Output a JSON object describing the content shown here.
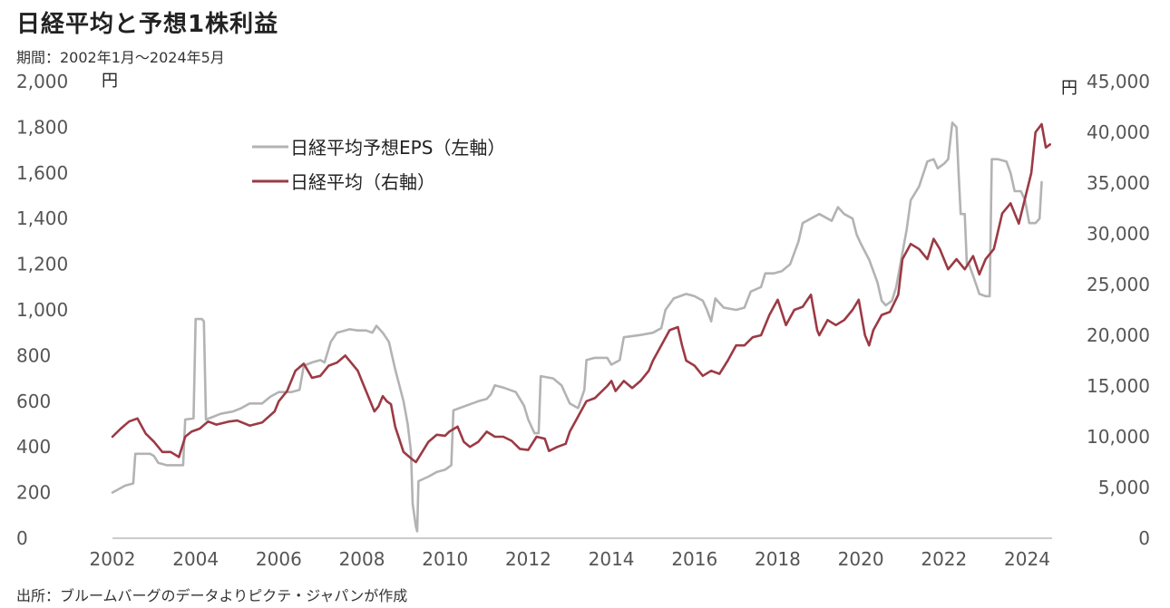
{
  "title": "日経平均と予想1株利益",
  "subtitle": "期間：2002年1月～2024年5月",
  "source": "出所：ブルームバーグのデータよりピクテ・ジャパンが作成",
  "chart_data": {
    "type": "line",
    "left_axis": {
      "unit": "円",
      "range": [
        0,
        2000
      ],
      "ticks": [
        "0",
        "200",
        "400",
        "600",
        "800",
        "1,000",
        "1,200",
        "1,400",
        "1,600",
        "1,800",
        "2,000"
      ]
    },
    "right_axis": {
      "unit": "円",
      "range": [
        0,
        45000
      ],
      "ticks": [
        "0",
        "5,000",
        "10,000",
        "15,000",
        "20,000",
        "25,000",
        "30,000",
        "35,000",
        "40,000",
        "45,000"
      ]
    },
    "x_axis": {
      "range": [
        2002,
        2024.6
      ],
      "ticks": [
        "2002",
        "2004",
        "2006",
        "2008",
        "2010",
        "2012",
        "2014",
        "2016",
        "2018",
        "2020",
        "2022",
        "2024"
      ]
    },
    "grid": false,
    "legend_position": "top-left",
    "series": [
      {
        "name": "日経平均予想EPS（左軸）",
        "axis": "left",
        "color": "#b3b3b3",
        "points": [
          [
            2002.0,
            200
          ],
          [
            2002.3,
            230
          ],
          [
            2002.5,
            240
          ],
          [
            2002.55,
            370
          ],
          [
            2002.9,
            370
          ],
          [
            2003.0,
            360
          ],
          [
            2003.1,
            330
          ],
          [
            2003.3,
            320
          ],
          [
            2003.5,
            320
          ],
          [
            2003.7,
            320
          ],
          [
            2003.75,
            520
          ],
          [
            2003.95,
            525
          ],
          [
            2004.0,
            960
          ],
          [
            2004.15,
            960
          ],
          [
            2004.2,
            950
          ],
          [
            2004.25,
            520
          ],
          [
            2004.4,
            530
          ],
          [
            2004.6,
            545
          ],
          [
            2004.9,
            555
          ],
          [
            2005.1,
            570
          ],
          [
            2005.3,
            590
          ],
          [
            2005.6,
            590
          ],
          [
            2005.8,
            620
          ],
          [
            2006.0,
            640
          ],
          [
            2006.3,
            640
          ],
          [
            2006.5,
            650
          ],
          [
            2006.6,
            755
          ],
          [
            2006.8,
            770
          ],
          [
            2007.0,
            780
          ],
          [
            2007.1,
            770
          ],
          [
            2007.25,
            860
          ],
          [
            2007.4,
            900
          ],
          [
            2007.7,
            915
          ],
          [
            2007.9,
            910
          ],
          [
            2008.1,
            910
          ],
          [
            2008.25,
            900
          ],
          [
            2008.35,
            930
          ],
          [
            2008.5,
            900
          ],
          [
            2008.65,
            860
          ],
          [
            2008.8,
            740
          ],
          [
            2009.0,
            600
          ],
          [
            2009.1,
            500
          ],
          [
            2009.18,
            380
          ],
          [
            2009.22,
            150
          ],
          [
            2009.3,
            50
          ],
          [
            2009.33,
            30
          ],
          [
            2009.36,
            250
          ],
          [
            2009.6,
            270
          ],
          [
            2009.8,
            290
          ],
          [
            2010.0,
            300
          ],
          [
            2010.15,
            320
          ],
          [
            2010.2,
            560
          ],
          [
            2010.5,
            580
          ],
          [
            2010.8,
            600
          ],
          [
            2011.0,
            610
          ],
          [
            2011.1,
            630
          ],
          [
            2011.2,
            670
          ],
          [
            2011.4,
            660
          ],
          [
            2011.7,
            640
          ],
          [
            2011.9,
            580
          ],
          [
            2012.0,
            520
          ],
          [
            2012.15,
            460
          ],
          [
            2012.25,
            460
          ],
          [
            2012.3,
            710
          ],
          [
            2012.6,
            700
          ],
          [
            2012.8,
            670
          ],
          [
            2013.0,
            590
          ],
          [
            2013.2,
            570
          ],
          [
            2013.35,
            650
          ],
          [
            2013.4,
            780
          ],
          [
            2013.6,
            790
          ],
          [
            2013.9,
            790
          ],
          [
            2014.0,
            760
          ],
          [
            2014.2,
            780
          ],
          [
            2014.3,
            880
          ],
          [
            2014.7,
            890
          ],
          [
            2015.0,
            900
          ],
          [
            2015.2,
            920
          ],
          [
            2015.3,
            1000
          ],
          [
            2015.5,
            1050
          ],
          [
            2015.8,
            1070
          ],
          [
            2016.0,
            1060
          ],
          [
            2016.2,
            1040
          ],
          [
            2016.3,
            1000
          ],
          [
            2016.4,
            950
          ],
          [
            2016.5,
            1050
          ],
          [
            2016.7,
            1010
          ],
          [
            2017.0,
            1000
          ],
          [
            2017.2,
            1010
          ],
          [
            2017.35,
            1080
          ],
          [
            2017.6,
            1100
          ],
          [
            2017.7,
            1160
          ],
          [
            2017.9,
            1160
          ],
          [
            2018.1,
            1170
          ],
          [
            2018.3,
            1200
          ],
          [
            2018.5,
            1300
          ],
          [
            2018.6,
            1380
          ],
          [
            2018.8,
            1400
          ],
          [
            2019.0,
            1420
          ],
          [
            2019.3,
            1390
          ],
          [
            2019.45,
            1450
          ],
          [
            2019.6,
            1420
          ],
          [
            2019.8,
            1400
          ],
          [
            2019.9,
            1330
          ],
          [
            2020.0,
            1290
          ],
          [
            2020.2,
            1220
          ],
          [
            2020.4,
            1120
          ],
          [
            2020.5,
            1040
          ],
          [
            2020.6,
            1020
          ],
          [
            2020.75,
            1040
          ],
          [
            2020.85,
            1100
          ],
          [
            2021.0,
            1250
          ],
          [
            2021.1,
            1350
          ],
          [
            2021.2,
            1480
          ],
          [
            2021.4,
            1540
          ],
          [
            2021.6,
            1650
          ],
          [
            2021.75,
            1660
          ],
          [
            2021.85,
            1620
          ],
          [
            2022.0,
            1640
          ],
          [
            2022.1,
            1660
          ],
          [
            2022.2,
            1820
          ],
          [
            2022.3,
            1800
          ],
          [
            2022.35,
            1600
          ],
          [
            2022.4,
            1420
          ],
          [
            2022.5,
            1420
          ],
          [
            2022.55,
            1200
          ],
          [
            2022.6,
            1200
          ],
          [
            2022.7,
            1150
          ],
          [
            2022.85,
            1070
          ],
          [
            2023.0,
            1060
          ],
          [
            2023.1,
            1060
          ],
          [
            2023.15,
            1660
          ],
          [
            2023.3,
            1660
          ],
          [
            2023.5,
            1650
          ],
          [
            2023.6,
            1600
          ],
          [
            2023.7,
            1520
          ],
          [
            2023.85,
            1520
          ],
          [
            2023.95,
            1480
          ],
          [
            2024.05,
            1380
          ],
          [
            2024.2,
            1380
          ],
          [
            2024.3,
            1400
          ],
          [
            2024.35,
            1560
          ]
        ]
      },
      {
        "name": "日経平均（右軸）",
        "axis": "right",
        "color": "#9b3a44",
        "points": [
          [
            2002.0,
            10000
          ],
          [
            2002.2,
            10800
          ],
          [
            2002.4,
            11500
          ],
          [
            2002.6,
            11800
          ],
          [
            2002.8,
            10300
          ],
          [
            2003.0,
            9500
          ],
          [
            2003.2,
            8500
          ],
          [
            2003.4,
            8500
          ],
          [
            2003.6,
            8000
          ],
          [
            2003.75,
            10000
          ],
          [
            2003.9,
            10500
          ],
          [
            2004.1,
            10800
          ],
          [
            2004.3,
            11500
          ],
          [
            2004.5,
            11200
          ],
          [
            2004.8,
            11500
          ],
          [
            2005.0,
            11600
          ],
          [
            2005.3,
            11100
          ],
          [
            2005.6,
            11400
          ],
          [
            2005.9,
            12500
          ],
          [
            2006.0,
            13500
          ],
          [
            2006.2,
            14500
          ],
          [
            2006.4,
            16500
          ],
          [
            2006.6,
            17200
          ],
          [
            2006.7,
            16500
          ],
          [
            2006.8,
            15800
          ],
          [
            2007.0,
            16000
          ],
          [
            2007.2,
            17000
          ],
          [
            2007.4,
            17300
          ],
          [
            2007.6,
            18000
          ],
          [
            2007.8,
            17000
          ],
          [
            2007.9,
            16500
          ],
          [
            2008.0,
            15500
          ],
          [
            2008.1,
            14500
          ],
          [
            2008.2,
            13500
          ],
          [
            2008.3,
            12500
          ],
          [
            2008.4,
            13000
          ],
          [
            2008.5,
            14000
          ],
          [
            2008.6,
            13500
          ],
          [
            2008.7,
            13200
          ],
          [
            2008.8,
            11000
          ],
          [
            2009.0,
            8500
          ],
          [
            2009.2,
            7800
          ],
          [
            2009.3,
            7500
          ],
          [
            2009.45,
            8500
          ],
          [
            2009.6,
            9500
          ],
          [
            2009.8,
            10200
          ],
          [
            2010.0,
            10100
          ],
          [
            2010.1,
            10500
          ],
          [
            2010.3,
            11000
          ],
          [
            2010.45,
            9500
          ],
          [
            2010.6,
            9000
          ],
          [
            2010.8,
            9500
          ],
          [
            2011.0,
            10500
          ],
          [
            2011.2,
            10000
          ],
          [
            2011.4,
            10000
          ],
          [
            2011.6,
            9600
          ],
          [
            2011.8,
            8800
          ],
          [
            2012.0,
            8700
          ],
          [
            2012.2,
            10000
          ],
          [
            2012.4,
            9800
          ],
          [
            2012.5,
            8600
          ],
          [
            2012.7,
            9000
          ],
          [
            2012.9,
            9300
          ],
          [
            2013.0,
            10500
          ],
          [
            2013.2,
            12000
          ],
          [
            2013.4,
            13500
          ],
          [
            2013.6,
            13800
          ],
          [
            2013.9,
            15000
          ],
          [
            2014.0,
            15500
          ],
          [
            2014.1,
            14500
          ],
          [
            2014.3,
            15500
          ],
          [
            2014.5,
            14800
          ],
          [
            2014.7,
            15500
          ],
          [
            2014.9,
            16500
          ],
          [
            2015.0,
            17500
          ],
          [
            2015.2,
            19000
          ],
          [
            2015.4,
            20500
          ],
          [
            2015.6,
            20800
          ],
          [
            2015.7,
            19000
          ],
          [
            2015.8,
            17500
          ],
          [
            2016.0,
            17000
          ],
          [
            2016.2,
            16000
          ],
          [
            2016.4,
            16500
          ],
          [
            2016.6,
            16200
          ],
          [
            2016.8,
            17500
          ],
          [
            2017.0,
            19000
          ],
          [
            2017.2,
            19000
          ],
          [
            2017.4,
            19800
          ],
          [
            2017.6,
            20000
          ],
          [
            2017.8,
            22000
          ],
          [
            2018.0,
            23500
          ],
          [
            2018.2,
            21000
          ],
          [
            2018.4,
            22500
          ],
          [
            2018.6,
            22800
          ],
          [
            2018.8,
            24000
          ],
          [
            2018.95,
            20500
          ],
          [
            2019.0,
            20000
          ],
          [
            2019.2,
            21500
          ],
          [
            2019.4,
            21000
          ],
          [
            2019.6,
            21500
          ],
          [
            2019.8,
            22500
          ],
          [
            2019.95,
            23500
          ],
          [
            2020.1,
            20000
          ],
          [
            2020.2,
            19000
          ],
          [
            2020.3,
            20500
          ],
          [
            2020.5,
            22000
          ],
          [
            2020.7,
            22300
          ],
          [
            2020.9,
            24000
          ],
          [
            2021.0,
            27500
          ],
          [
            2021.2,
            29000
          ],
          [
            2021.4,
            28500
          ],
          [
            2021.6,
            27500
          ],
          [
            2021.75,
            29500
          ],
          [
            2021.9,
            28500
          ],
          [
            2022.1,
            26500
          ],
          [
            2022.3,
            27500
          ],
          [
            2022.5,
            26500
          ],
          [
            2022.7,
            27800
          ],
          [
            2022.85,
            26000
          ],
          [
            2023.0,
            27500
          ],
          [
            2023.2,
            28500
          ],
          [
            2023.4,
            32000
          ],
          [
            2023.6,
            33000
          ],
          [
            2023.8,
            31000
          ],
          [
            2023.95,
            33500
          ],
          [
            2024.1,
            36000
          ],
          [
            2024.2,
            40000
          ],
          [
            2024.35,
            40800
          ],
          [
            2024.45,
            38500
          ],
          [
            2024.55,
            38800
          ]
        ]
      }
    ]
  }
}
